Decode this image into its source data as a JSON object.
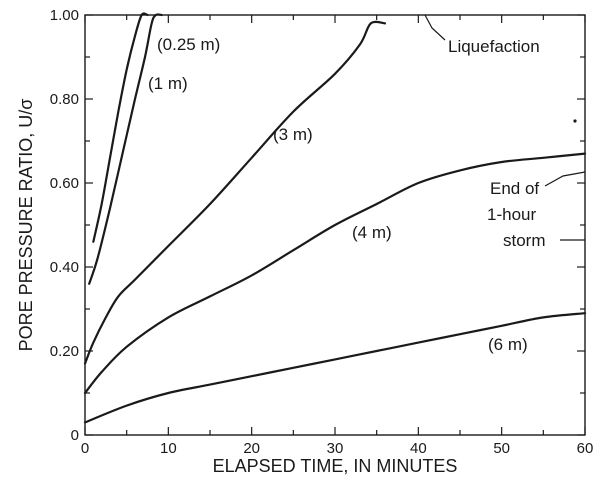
{
  "chart_data": {
    "type": "line",
    "title": "",
    "xlabel": "ELAPSED TIME, IN MINUTES",
    "ylabel": "PORE PRESSURE RATIO, U/σ",
    "xlim": [
      0,
      60
    ],
    "ylim": [
      0,
      1.0
    ],
    "x_ticks": [
      "0",
      "10",
      "20",
      "30",
      "40",
      "50",
      "60"
    ],
    "y_ticks": [
      "0",
      "0.20",
      "0.40",
      "0.60",
      "0.80",
      "1.00"
    ],
    "grid": false,
    "series": [
      {
        "name": "(0.25 m)",
        "points": [
          [
            1.0,
            0.46
          ],
          [
            2,
            0.55
          ],
          [
            3,
            0.66
          ],
          [
            4,
            0.77
          ],
          [
            5,
            0.87
          ],
          [
            6,
            0.95
          ],
          [
            6.8,
            1.0
          ],
          [
            7.5,
            1.0
          ]
        ]
      },
      {
        "name": "(1 m)",
        "points": [
          [
            0.5,
            0.36
          ],
          [
            1.5,
            0.42
          ],
          [
            3,
            0.54
          ],
          [
            4.5,
            0.67
          ],
          [
            6,
            0.8
          ],
          [
            7.2,
            0.9
          ],
          [
            8.0,
            0.98
          ],
          [
            8.5,
            1.0
          ],
          [
            9.2,
            1.0
          ]
        ]
      },
      {
        "name": "(3 m)",
        "points": [
          [
            0,
            0.17
          ],
          [
            1,
            0.22
          ],
          [
            2.5,
            0.28
          ],
          [
            4,
            0.33
          ],
          [
            6,
            0.37
          ],
          [
            10,
            0.45
          ],
          [
            15,
            0.55
          ],
          [
            20,
            0.66
          ],
          [
            25,
            0.77
          ],
          [
            30,
            0.86
          ],
          [
            33,
            0.93
          ],
          [
            34.3,
            0.98
          ],
          [
            36,
            0.98
          ]
        ]
      },
      {
        "name": "(4 m)",
        "points": [
          [
            0,
            0.1
          ],
          [
            2,
            0.15
          ],
          [
            5,
            0.21
          ],
          [
            10,
            0.28
          ],
          [
            15,
            0.33
          ],
          [
            20,
            0.38
          ],
          [
            25,
            0.44
          ],
          [
            30,
            0.5
          ],
          [
            35,
            0.55
          ],
          [
            40,
            0.6
          ],
          [
            45,
            0.63
          ],
          [
            50,
            0.65
          ],
          [
            55,
            0.66
          ],
          [
            60,
            0.67
          ]
        ]
      },
      {
        "name": "(6 m)",
        "points": [
          [
            0,
            0.03
          ],
          [
            5,
            0.07
          ],
          [
            10,
            0.1
          ],
          [
            15,
            0.12
          ],
          [
            20,
            0.14
          ],
          [
            25,
            0.16
          ],
          [
            30,
            0.18
          ],
          [
            35,
            0.2
          ],
          [
            40,
            0.22
          ],
          [
            45,
            0.24
          ],
          [
            50,
            0.26
          ],
          [
            55,
            0.28
          ],
          [
            60,
            0.29
          ]
        ]
      }
    ],
    "annotations": {
      "liquefaction": "Liquefaction",
      "storm_line1": "End of",
      "storm_line2": "1-hour",
      "storm_line3": "storm"
    }
  }
}
